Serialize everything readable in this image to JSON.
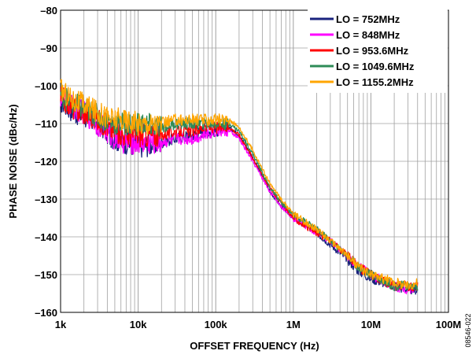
{
  "figure_id": "08546-022",
  "chart_data": {
    "type": "line",
    "xlabel": "OFFSET FREQUENCY (Hz)",
    "ylabel": "PHASE NOISE (dBc/Hz)",
    "x_scale": "log",
    "xlim": [
      1000,
      100000000
    ],
    "ylim": [
      -160,
      -80
    ],
    "grid": true,
    "legend_position": "top-right",
    "x_ticks": [
      {
        "value": 1000,
        "label": "1k"
      },
      {
        "value": 10000,
        "label": "10k"
      },
      {
        "value": 100000,
        "label": "100k"
      },
      {
        "value": 1000000,
        "label": "1M"
      },
      {
        "value": 10000000,
        "label": "10M"
      },
      {
        "value": 100000000,
        "label": "100M"
      }
    ],
    "y_ticks": [
      {
        "value": -80,
        "label": "–80"
      },
      {
        "value": -90,
        "label": "–90"
      },
      {
        "value": -100,
        "label": "–100"
      },
      {
        "value": -110,
        "label": "–110"
      },
      {
        "value": -120,
        "label": "–120"
      },
      {
        "value": -130,
        "label": "–130"
      },
      {
        "value": -140,
        "label": "–140"
      },
      {
        "value": -150,
        "label": "–150"
      },
      {
        "value": -160,
        "label": "–160"
      }
    ],
    "x": [
      1000,
      1500,
      2000,
      3000,
      5000,
      7000,
      10000,
      20000,
      30000,
      50000,
      70000,
      100000,
      150000,
      200000,
      300000,
      500000,
      700000,
      1000000,
      2000000,
      3000000,
      5000000,
      7000000,
      10000000,
      20000000,
      30000000,
      40000000
    ],
    "series": [
      {
        "name": "LO = 752MHz",
        "color": "#1a237e",
        "values": [
          -104,
          -107,
          -108,
          -110,
          -114,
          -115,
          -116,
          -115,
          -114,
          -113,
          -112,
          -112,
          -111,
          -113,
          -119,
          -128,
          -132,
          -135,
          -139,
          -142,
          -146,
          -149,
          -151,
          -153,
          -154,
          -154
        ]
      },
      {
        "name": "LO = 848MHz",
        "color": "#ff00ff",
        "values": [
          -103,
          -106,
          -107,
          -110,
          -114,
          -115,
          -115,
          -115,
          -114,
          -114,
          -113,
          -112,
          -112,
          -114,
          -120,
          -128,
          -132,
          -135,
          -139,
          -141,
          -145,
          -148,
          -150,
          -153,
          -154,
          -153
        ]
      },
      {
        "name": "LO = 953.6MHz",
        "color": "#ff0000",
        "values": [
          -103,
          -106,
          -107,
          -109,
          -112,
          -113,
          -113,
          -113,
          -112,
          -112,
          -111,
          -111,
          -111,
          -113,
          -119,
          -127,
          -131,
          -135,
          -139,
          -141,
          -145,
          -148,
          -150,
          -153,
          -153,
          -153
        ]
      },
      {
        "name": "LO = 1049.6MHz",
        "color": "#2e8b57",
        "values": [
          -102,
          -105,
          -106,
          -108,
          -110,
          -110,
          -110,
          -111,
          -110,
          -110,
          -110,
          -110,
          -110,
          -112,
          -118,
          -127,
          -131,
          -134,
          -138,
          -141,
          -145,
          -148,
          -150,
          -153,
          -153,
          -153
        ]
      },
      {
        "name": "LO = 1155.2MHz",
        "color": "#ffa500",
        "values": [
          -101,
          -104,
          -105,
          -107,
          -109,
          -109,
          -110,
          -110,
          -109,
          -109,
          -109,
          -109,
          -109,
          -111,
          -117,
          -126,
          -130,
          -134,
          -138,
          -141,
          -145,
          -148,
          -150,
          -152,
          -153,
          -152
        ]
      }
    ]
  }
}
